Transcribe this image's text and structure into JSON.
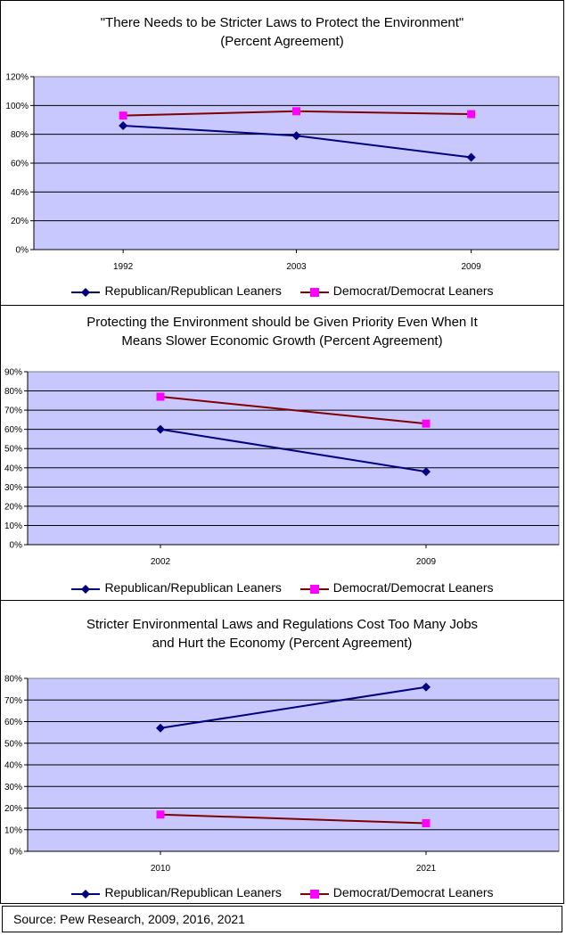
{
  "chart_data": [
    {
      "type": "line",
      "title_line1": "\"There Needs to be Stricter Laws to Protect the Environment\"",
      "title_line2": "(Percent Agreement)",
      "categories": [
        "1992",
        "2003",
        "2009"
      ],
      "yticks": [
        "0%",
        "20%",
        "40%",
        "60%",
        "80%",
        "100%",
        "120%"
      ],
      "ylim": [
        0,
        120
      ],
      "ystep": 20,
      "series": [
        {
          "name": "Republican/Republican Leaners",
          "values": [
            86,
            79,
            64
          ],
          "color": "#000080",
          "marker": "diamond"
        },
        {
          "name": "Democrat/Democrat Leaners",
          "values": [
            93,
            96,
            94
          ],
          "color": "#800000",
          "marker": "square",
          "marker_color": "#ff00ff"
        }
      ],
      "plot_bg": "#c8c8ff",
      "grid": true,
      "legend": "bottom"
    },
    {
      "type": "line",
      "title_line1": "Protecting the Environment should be Given Priority Even When It",
      "title_line2": "Means Slower Economic Growth (Percent Agreement)",
      "categories": [
        "2002",
        "2009"
      ],
      "yticks": [
        "0%",
        "10%",
        "20%",
        "30%",
        "40%",
        "50%",
        "60%",
        "70%",
        "80%",
        "90%"
      ],
      "ylim": [
        0,
        90
      ],
      "ystep": 10,
      "series": [
        {
          "name": "Republican/Republican Leaners",
          "values": [
            60,
            38
          ],
          "color": "#000080",
          "marker": "diamond"
        },
        {
          "name": "Democrat/Democrat Leaners",
          "values": [
            77,
            63
          ],
          "color": "#800000",
          "marker": "square",
          "marker_color": "#ff00ff"
        }
      ],
      "plot_bg": "#c8c8ff",
      "grid": true,
      "legend": "bottom"
    },
    {
      "type": "line",
      "title_line1": "Stricter Environmental Laws and Regulations Cost Too Many Jobs",
      "title_line2": "and Hurt the Economy (Percent Agreement)",
      "categories": [
        "2010",
        "2021"
      ],
      "yticks": [
        "0%",
        "10%",
        "20%",
        "30%",
        "40%",
        "50%",
        "60%",
        "70%",
        "80%"
      ],
      "ylim": [
        0,
        80
      ],
      "ystep": 10,
      "series": [
        {
          "name": "Republican/Republican Leaners",
          "values": [
            57,
            76
          ],
          "color": "#000080",
          "marker": "diamond"
        },
        {
          "name": "Democrat/Democrat Leaners",
          "values": [
            17,
            13
          ],
          "color": "#800000",
          "marker": "square",
          "marker_color": "#ff00ff"
        }
      ],
      "plot_bg": "#c8c8ff",
      "grid": true,
      "legend": "bottom"
    }
  ],
  "source": "Source: Pew Research, 2009, 2016, 2021"
}
